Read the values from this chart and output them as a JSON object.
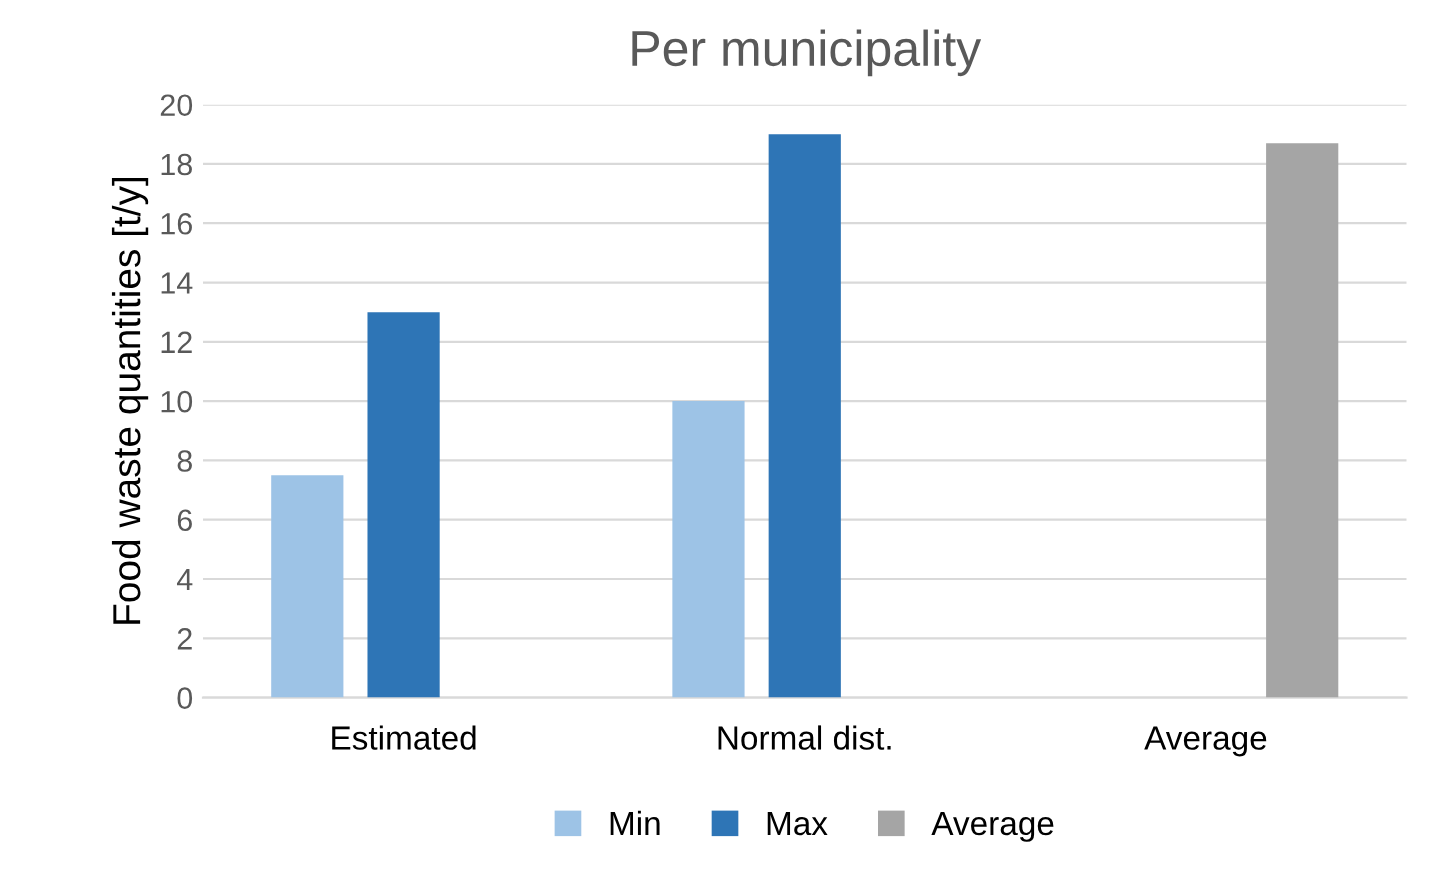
{
  "chart_data": {
    "type": "bar",
    "title": "Per municipality",
    "ylabel": "Food waste quantities [t/y]",
    "categories": [
      "Estimated",
      "Normal dist.",
      "Average"
    ],
    "series": [
      {
        "name": "Min",
        "color": "#9dc3e6",
        "values": [
          7.5,
          10,
          null
        ]
      },
      {
        "name": "Max",
        "color": "#2e75b6",
        "values": [
          13,
          19,
          null
        ]
      },
      {
        "name": "Average",
        "color": "#a5a5a5",
        "values": [
          null,
          null,
          18.7
        ]
      }
    ],
    "ylim": [
      0,
      20
    ],
    "yticks": [
      0,
      2,
      4,
      6,
      8,
      10,
      12,
      14,
      16,
      18,
      20
    ],
    "grid": "y",
    "legend": "bottom"
  }
}
